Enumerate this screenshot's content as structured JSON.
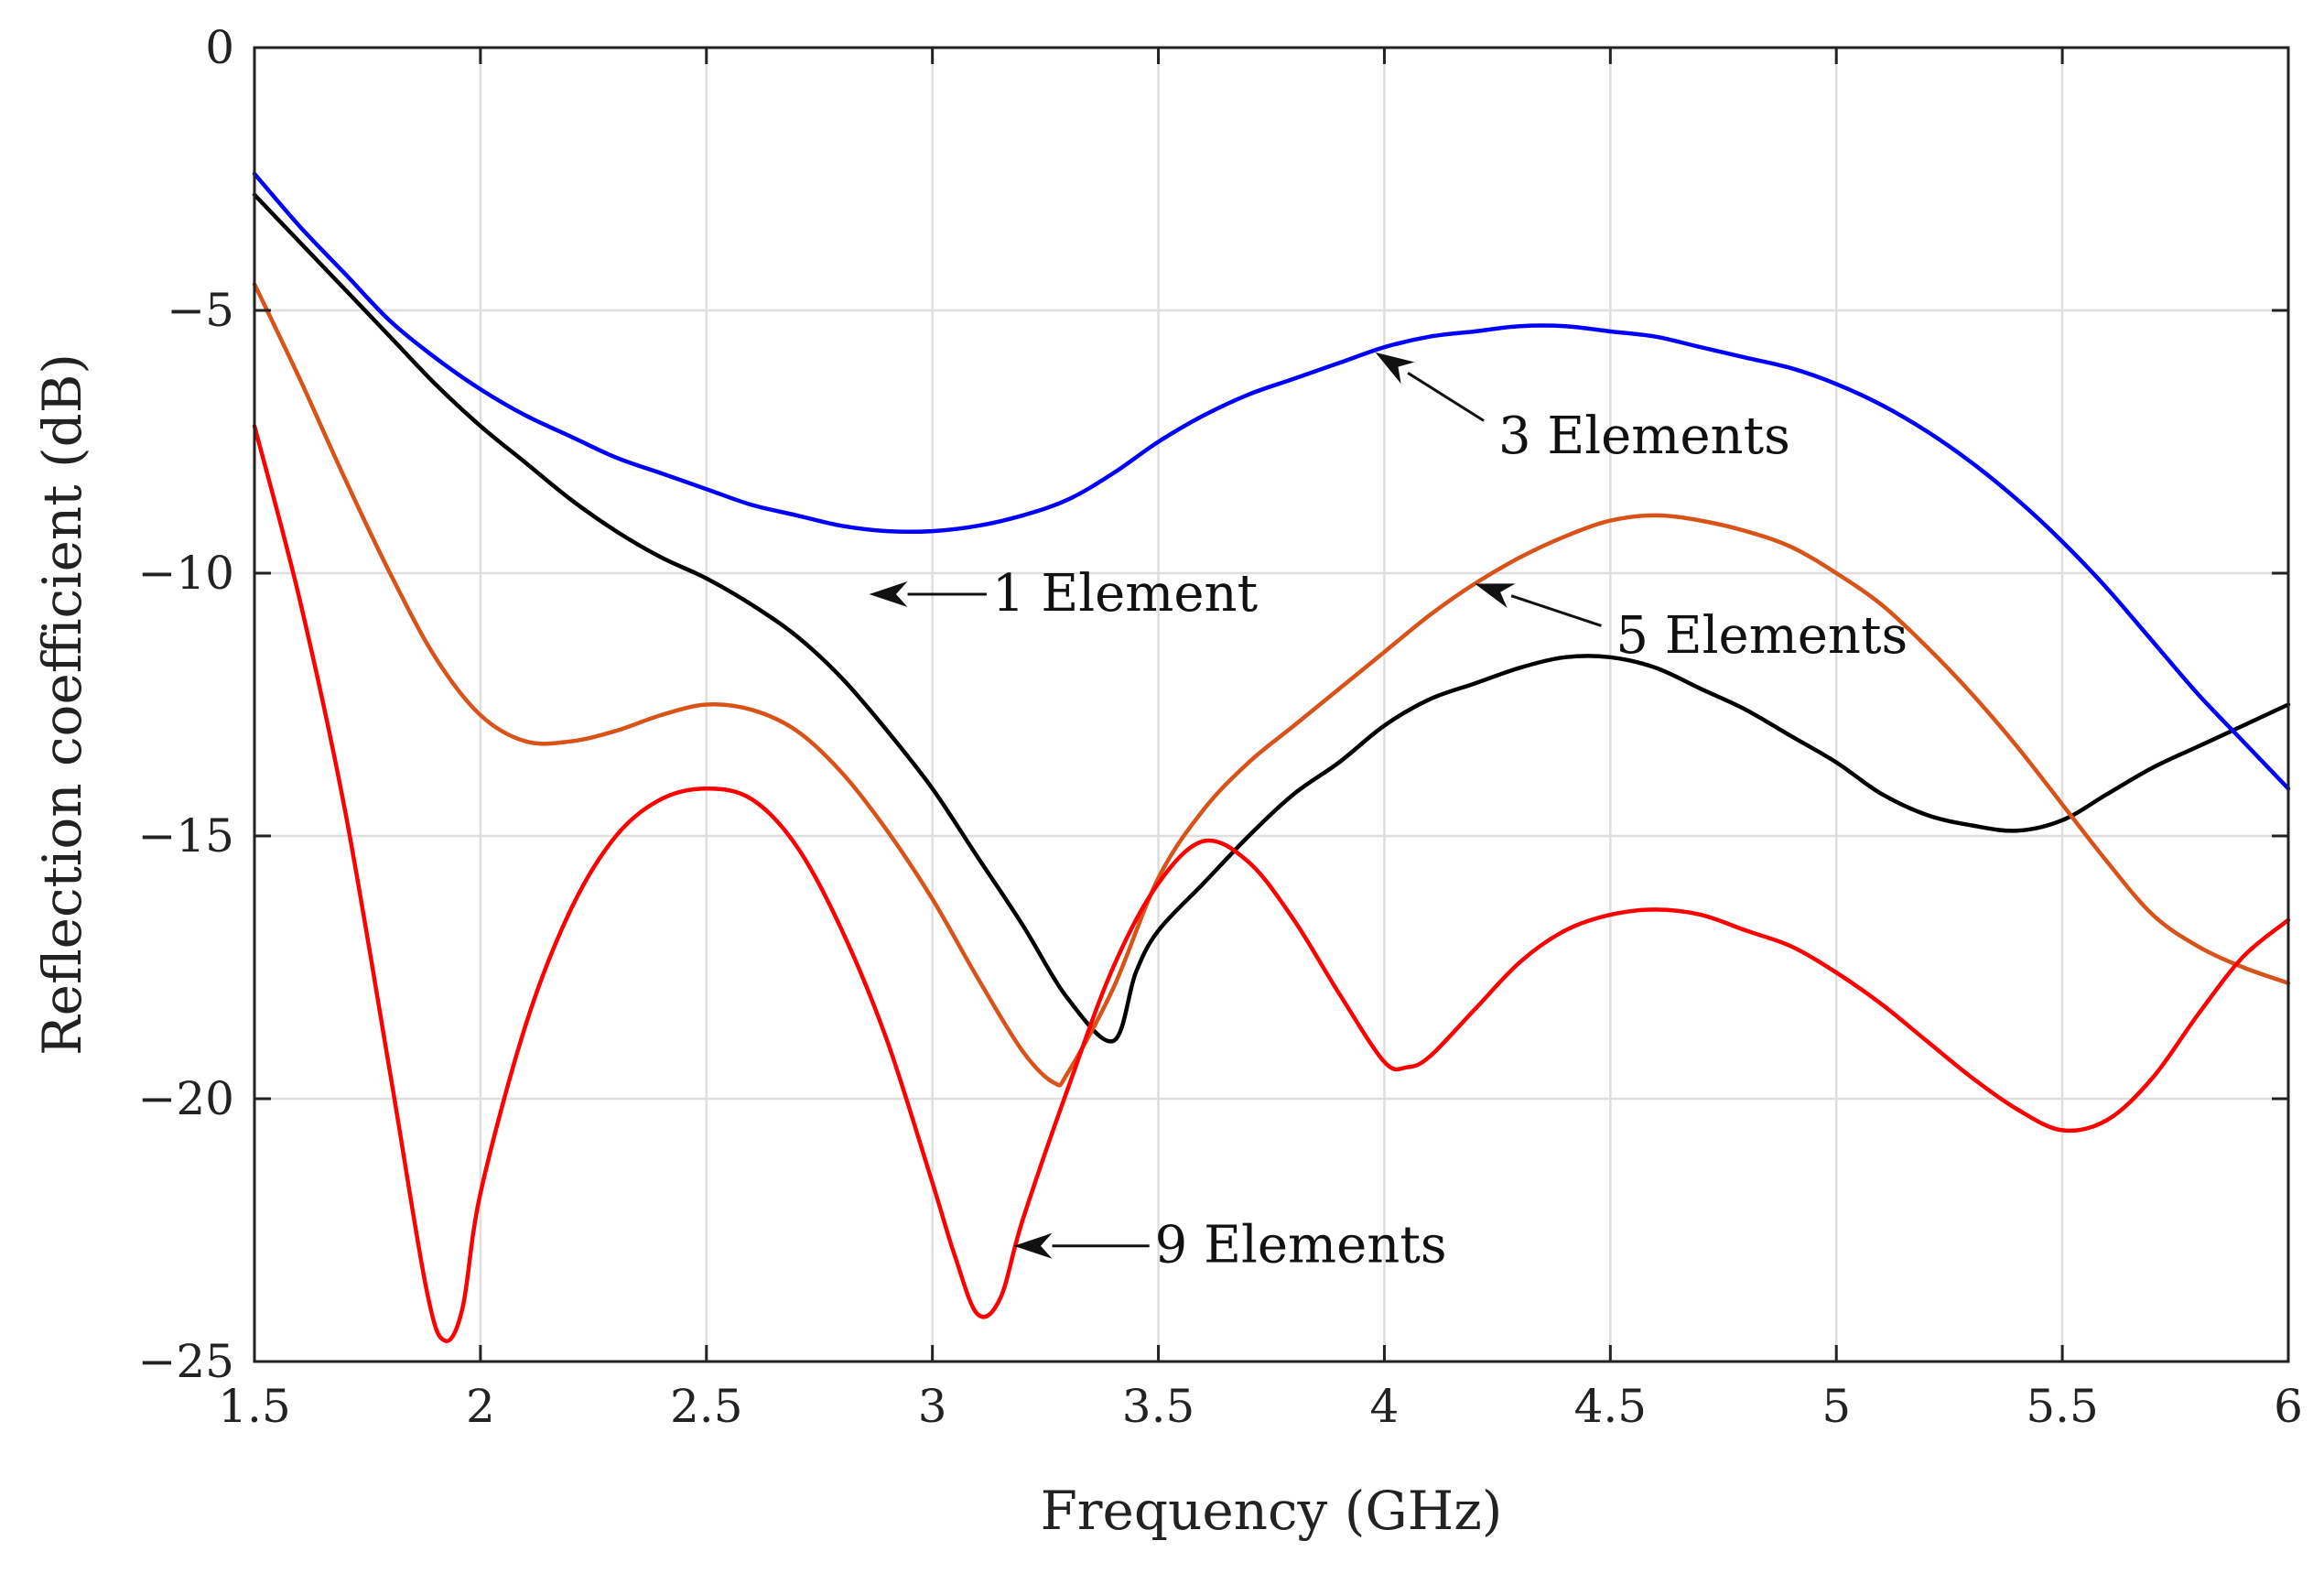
{
  "chart_data": {
    "type": "line",
    "title": "",
    "xlabel": "Frequency (GHz)",
    "ylabel": "Reflection coefficient (dB)",
    "xlim": [
      1.5,
      6
    ],
    "ylim": [
      -25,
      0
    ],
    "grid": true,
    "x_ticks": [
      1.5,
      2,
      2.5,
      3,
      3.5,
      4,
      4.5,
      5,
      5.5,
      6
    ],
    "x_tick_labels": [
      "1.5",
      "2",
      "2.5",
      "3",
      "3.5",
      "4",
      "4.5",
      "5",
      "5.5",
      "6"
    ],
    "y_ticks": [
      0,
      -5,
      -10,
      -15,
      -20,
      -25
    ],
    "y_tick_labels": [
      "0",
      "−5",
      "−10",
      "−15",
      "−20",
      "−25"
    ],
    "series": [
      {
        "name": "1 Element",
        "color": "#000000",
        "points": [
          [
            1.5,
            -2.8
          ],
          [
            1.6,
            -3.7
          ],
          [
            1.7,
            -4.6
          ],
          [
            1.8,
            -5.5
          ],
          [
            1.9,
            -6.4
          ],
          [
            2.0,
            -7.2
          ],
          [
            2.1,
            -7.9
          ],
          [
            2.2,
            -8.6
          ],
          [
            2.3,
            -9.2
          ],
          [
            2.4,
            -9.7
          ],
          [
            2.5,
            -10.1
          ],
          [
            2.6,
            -10.6
          ],
          [
            2.7,
            -11.2
          ],
          [
            2.8,
            -12.0
          ],
          [
            2.9,
            -13.0
          ],
          [
            3.0,
            -14.1
          ],
          [
            3.1,
            -15.4
          ],
          [
            3.2,
            -16.7
          ],
          [
            3.3,
            -18.1
          ],
          [
            3.4,
            -18.9
          ],
          [
            3.45,
            -17.6
          ],
          [
            3.5,
            -16.8
          ],
          [
            3.6,
            -15.9
          ],
          [
            3.7,
            -15.0
          ],
          [
            3.8,
            -14.2
          ],
          [
            3.9,
            -13.6
          ],
          [
            4.0,
            -12.9
          ],
          [
            4.1,
            -12.4
          ],
          [
            4.2,
            -12.1
          ],
          [
            4.3,
            -11.8
          ],
          [
            4.4,
            -11.6
          ],
          [
            4.5,
            -11.6
          ],
          [
            4.6,
            -11.8
          ],
          [
            4.7,
            -12.2
          ],
          [
            4.8,
            -12.6
          ],
          [
            4.9,
            -13.1
          ],
          [
            5.0,
            -13.6
          ],
          [
            5.1,
            -14.2
          ],
          [
            5.2,
            -14.6
          ],
          [
            5.3,
            -14.8
          ],
          [
            5.4,
            -14.9
          ],
          [
            5.5,
            -14.7
          ],
          [
            5.6,
            -14.2
          ],
          [
            5.7,
            -13.7
          ],
          [
            5.8,
            -13.3
          ],
          [
            5.9,
            -12.9
          ],
          [
            6.0,
            -12.5
          ]
        ]
      },
      {
        "name": "3 Elements",
        "color": "#0000ff",
        "points": [
          [
            1.5,
            -2.4
          ],
          [
            1.6,
            -3.4
          ],
          [
            1.7,
            -4.3
          ],
          [
            1.8,
            -5.2
          ],
          [
            1.9,
            -5.9
          ],
          [
            2.0,
            -6.5
          ],
          [
            2.1,
            -7.0
          ],
          [
            2.2,
            -7.4
          ],
          [
            2.3,
            -7.8
          ],
          [
            2.4,
            -8.1
          ],
          [
            2.5,
            -8.4
          ],
          [
            2.6,
            -8.7
          ],
          [
            2.7,
            -8.9
          ],
          [
            2.8,
            -9.1
          ],
          [
            2.9,
            -9.2
          ],
          [
            3.0,
            -9.2
          ],
          [
            3.1,
            -9.1
          ],
          [
            3.2,
            -8.9
          ],
          [
            3.3,
            -8.6
          ],
          [
            3.4,
            -8.1
          ],
          [
            3.5,
            -7.5
          ],
          [
            3.6,
            -7.0
          ],
          [
            3.7,
            -6.6
          ],
          [
            3.8,
            -6.3
          ],
          [
            3.9,
            -6.0
          ],
          [
            4.0,
            -5.7
          ],
          [
            4.1,
            -5.5
          ],
          [
            4.2,
            -5.4
          ],
          [
            4.3,
            -5.3
          ],
          [
            4.4,
            -5.3
          ],
          [
            4.5,
            -5.4
          ],
          [
            4.6,
            -5.5
          ],
          [
            4.7,
            -5.7
          ],
          [
            4.8,
            -5.9
          ],
          [
            4.9,
            -6.1
          ],
          [
            5.0,
            -6.4
          ],
          [
            5.1,
            -6.8
          ],
          [
            5.2,
            -7.3
          ],
          [
            5.3,
            -7.9
          ],
          [
            5.4,
            -8.6
          ],
          [
            5.5,
            -9.4
          ],
          [
            5.6,
            -10.3
          ],
          [
            5.7,
            -11.3
          ],
          [
            5.8,
            -12.3
          ],
          [
            5.9,
            -13.2
          ],
          [
            6.0,
            -14.1
          ]
        ]
      },
      {
        "name": "5 Elements",
        "color": "#d95319",
        "points": [
          [
            1.5,
            -4.5
          ],
          [
            1.6,
            -6.3
          ],
          [
            1.7,
            -8.2
          ],
          [
            1.8,
            -10.0
          ],
          [
            1.9,
            -11.6
          ],
          [
            2.0,
            -12.7
          ],
          [
            2.1,
            -13.2
          ],
          [
            2.2,
            -13.2
          ],
          [
            2.3,
            -13.0
          ],
          [
            2.4,
            -12.7
          ],
          [
            2.5,
            -12.5
          ],
          [
            2.6,
            -12.6
          ],
          [
            2.7,
            -13.0
          ],
          [
            2.8,
            -13.8
          ],
          [
            2.9,
            -14.9
          ],
          [
            3.0,
            -16.2
          ],
          [
            3.1,
            -17.7
          ],
          [
            3.2,
            -19.1
          ],
          [
            3.27,
            -19.7
          ],
          [
            3.3,
            -19.5
          ],
          [
            3.4,
            -17.9
          ],
          [
            3.5,
            -15.8
          ],
          [
            3.6,
            -14.5
          ],
          [
            3.7,
            -13.6
          ],
          [
            3.8,
            -12.9
          ],
          [
            3.9,
            -12.2
          ],
          [
            4.0,
            -11.5
          ],
          [
            4.1,
            -10.8
          ],
          [
            4.2,
            -10.2
          ],
          [
            4.3,
            -9.7
          ],
          [
            4.4,
            -9.3
          ],
          [
            4.5,
            -9.0
          ],
          [
            4.6,
            -8.9
          ],
          [
            4.7,
            -9.0
          ],
          [
            4.8,
            -9.2
          ],
          [
            4.9,
            -9.5
          ],
          [
            5.0,
            -10.0
          ],
          [
            5.1,
            -10.6
          ],
          [
            5.2,
            -11.4
          ],
          [
            5.3,
            -12.3
          ],
          [
            5.4,
            -13.3
          ],
          [
            5.5,
            -14.4
          ],
          [
            5.6,
            -15.5
          ],
          [
            5.7,
            -16.5
          ],
          [
            5.8,
            -17.1
          ],
          [
            5.9,
            -17.5
          ],
          [
            6.0,
            -17.8
          ]
        ]
      },
      {
        "name": "9 Elements",
        "color": "#ff0000",
        "points": [
          [
            1.5,
            -7.2
          ],
          [
            1.6,
            -10.5
          ],
          [
            1.7,
            -14.5
          ],
          [
            1.8,
            -19.5
          ],
          [
            1.88,
            -23.6
          ],
          [
            1.92,
            -24.6
          ],
          [
            1.96,
            -24.0
          ],
          [
            2.0,
            -21.8
          ],
          [
            2.1,
            -18.6
          ],
          [
            2.2,
            -16.4
          ],
          [
            2.3,
            -15.0
          ],
          [
            2.4,
            -14.3
          ],
          [
            2.5,
            -14.1
          ],
          [
            2.6,
            -14.3
          ],
          [
            2.7,
            -15.2
          ],
          [
            2.8,
            -16.8
          ],
          [
            2.9,
            -18.9
          ],
          [
            3.0,
            -21.6
          ],
          [
            3.05,
            -23.0
          ],
          [
            3.1,
            -24.1
          ],
          [
            3.15,
            -23.8
          ],
          [
            3.2,
            -22.3
          ],
          [
            3.3,
            -19.8
          ],
          [
            3.4,
            -17.5
          ],
          [
            3.5,
            -15.9
          ],
          [
            3.6,
            -15.1
          ],
          [
            3.7,
            -15.5
          ],
          [
            3.8,
            -16.6
          ],
          [
            3.9,
            -18.0
          ],
          [
            4.0,
            -19.3
          ],
          [
            4.05,
            -19.4
          ],
          [
            4.1,
            -19.2
          ],
          [
            4.2,
            -18.3
          ],
          [
            4.3,
            -17.4
          ],
          [
            4.4,
            -16.8
          ],
          [
            4.5,
            -16.5
          ],
          [
            4.6,
            -16.4
          ],
          [
            4.7,
            -16.5
          ],
          [
            4.8,
            -16.8
          ],
          [
            4.9,
            -17.1
          ],
          [
            5.0,
            -17.6
          ],
          [
            5.1,
            -18.2
          ],
          [
            5.2,
            -18.9
          ],
          [
            5.3,
            -19.6
          ],
          [
            5.4,
            -20.2
          ],
          [
            5.5,
            -20.6
          ],
          [
            5.6,
            -20.4
          ],
          [
            5.7,
            -19.6
          ],
          [
            5.8,
            -18.4
          ],
          [
            5.9,
            -17.3
          ],
          [
            6.0,
            -16.6
          ]
        ]
      }
    ],
    "annotations": [
      {
        "text": "1 Element",
        "arrow_from": [
          3.12,
          -10.4
        ],
        "arrow_to": [
          2.86,
          -10.4
        ],
        "text_at": [
          3.12,
          -10.4
        ]
      },
      {
        "text": "3 Elements",
        "arrow_from": [
          4.22,
          -7.1
        ],
        "arrow_to": [
          3.98,
          -5.8
        ],
        "text_at": [
          4.24,
          -7.4
        ]
      },
      {
        "text": "5 Elements",
        "arrow_from": [
          4.48,
          -11.0
        ],
        "arrow_to": [
          4.2,
          -10.2
        ],
        "text_at": [
          4.5,
          -11.2
        ]
      },
      {
        "text": "9 Elements",
        "arrow_from": [
          3.48,
          -22.8
        ],
        "arrow_to": [
          3.18,
          -22.8
        ],
        "text_at": [
          3.48,
          -22.8
        ]
      }
    ]
  }
}
